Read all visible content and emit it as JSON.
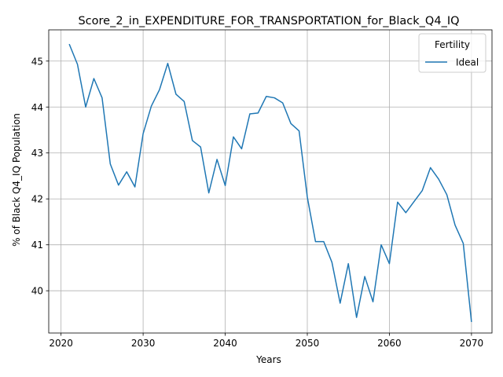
{
  "chart_data": {
    "type": "line",
    "title": "Score_2_in_EXPENDITURE_FOR_TRANSPORTATION_for_Black_Q4_IQ",
    "xlabel": "Years",
    "ylabel": "% of Black Q4_IQ Population",
    "xlim": [
      2018.5,
      2072.5
    ],
    "ylim": [
      39.08,
      45.68
    ],
    "xticks": [
      2020,
      2030,
      2040,
      2050,
      2060,
      2070
    ],
    "yticks": [
      40,
      41,
      42,
      43,
      44,
      45
    ],
    "grid": true,
    "legend": {
      "title": "Fertility",
      "placement": "upper right"
    },
    "series_color": "#1f77b4",
    "series": [
      {
        "name": "Ideal",
        "x": [
          2021,
          2022,
          2023,
          2024,
          2025,
          2026,
          2027,
          2028,
          2029,
          2030,
          2031,
          2032,
          2033,
          2034,
          2035,
          2036,
          2037,
          2038,
          2039,
          2040,
          2041,
          2042,
          2043,
          2044,
          2045,
          2046,
          2047,
          2048,
          2049,
          2050,
          2051,
          2052,
          2053,
          2054,
          2055,
          2056,
          2057,
          2058,
          2059,
          2060,
          2061,
          2062,
          2063,
          2064,
          2065,
          2066,
          2067,
          2068,
          2069,
          2070
        ],
        "values": [
          45.37,
          44.93,
          44.0,
          44.62,
          44.2,
          42.76,
          42.3,
          42.59,
          42.26,
          43.42,
          44.02,
          44.38,
          44.95,
          44.28,
          44.12,
          43.27,
          43.13,
          42.13,
          42.86,
          42.29,
          43.35,
          43.09,
          43.85,
          43.87,
          44.23,
          44.2,
          44.09,
          43.64,
          43.48,
          42.04,
          41.07,
          41.07,
          40.62,
          39.73,
          40.59,
          39.42,
          40.31,
          39.76,
          41.0,
          40.59,
          41.93,
          41.7,
          41.94,
          42.18,
          42.68,
          42.43,
          42.09,
          41.43,
          41.03,
          39.32
        ]
      }
    ]
  }
}
